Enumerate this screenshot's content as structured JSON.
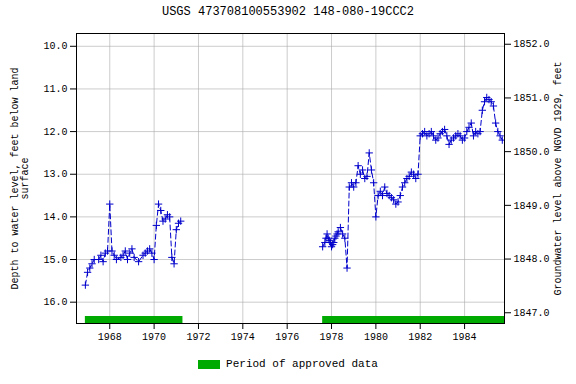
{
  "chart_data": {
    "type": "line",
    "title": "USGS 473708100553902 148-080-19CCC2",
    "ylabel": "Depth to water level, feet below land\nsurface",
    "y2label": "Groundwater level above NGVD 1929, feet",
    "x": [
      1966.9,
      1967.0,
      1967.1,
      1967.2,
      1967.3,
      1967.5,
      1967.6,
      1967.7,
      1967.8,
      1967.9,
      1968.0,
      1968.1,
      1968.2,
      1968.3,
      1968.5,
      1968.6,
      1968.7,
      1968.8,
      1968.9,
      1969.0,
      1969.1,
      1969.3,
      1969.5,
      1969.6,
      1969.7,
      1969.8,
      1969.9,
      1970.0,
      1970.1,
      1970.2,
      1970.3,
      1970.4,
      1970.5,
      1970.6,
      1970.7,
      1970.8,
      1970.9,
      1971.0,
      1971.1,
      1971.2,
      null,
      1977.6,
      1977.7,
      1977.75,
      1977.8,
      1977.85,
      1977.9,
      1977.95,
      1978.0,
      1978.05,
      1978.1,
      1978.15,
      1978.2,
      1978.25,
      1978.3,
      1978.4,
      1978.5,
      1978.6,
      1978.7,
      1978.8,
      1978.9,
      1979.0,
      1979.1,
      1979.2,
      1979.3,
      1979.4,
      1979.5,
      1979.6,
      1979.7,
      1979.8,
      1979.9,
      1980.0,
      1980.1,
      1980.2,
      1980.3,
      1980.4,
      1980.5,
      1980.6,
      1980.7,
      1980.8,
      1980.9,
      1981.0,
      1981.1,
      1981.2,
      1981.3,
      1981.4,
      1981.5,
      1981.6,
      1981.7,
      1981.8,
      1981.9,
      1982.0,
      1982.1,
      1982.2,
      1982.3,
      1982.4,
      1982.5,
      1982.6,
      1982.7,
      1982.8,
      1982.9,
      1983.0,
      1983.1,
      1983.2,
      1983.3,
      1983.4,
      1983.5,
      1983.6,
      1983.7,
      1983.8,
      1983.9,
      1984.0,
      1984.1,
      1984.2,
      1984.3,
      1984.4,
      1984.5,
      1984.6,
      1984.7,
      1984.8,
      1984.9,
      1985.0,
      1985.1,
      1985.2,
      1985.3,
      1985.4,
      1985.5,
      1985.6,
      1985.7
    ],
    "series": [
      {
        "color": "#0000cc",
        "marker": "plus",
        "line_style": "dashed",
        "values": [
          15.6,
          15.3,
          15.2,
          15.1,
          15.0,
          15.0,
          14.9,
          15.05,
          14.85,
          14.8,
          13.7,
          14.8,
          14.9,
          15.0,
          14.95,
          14.9,
          14.8,
          15.0,
          14.85,
          14.75,
          14.95,
          15.05,
          14.9,
          14.85,
          14.8,
          14.75,
          14.85,
          15.0,
          14.2,
          13.7,
          13.85,
          14.1,
          14.05,
          13.95,
          14.0,
          14.95,
          15.1,
          14.3,
          14.15,
          14.1,
          null,
          14.7,
          14.6,
          14.5,
          14.4,
          14.5,
          14.55,
          14.6,
          14.7,
          14.65,
          14.6,
          14.5,
          14.45,
          14.4,
          14.35,
          14.25,
          14.4,
          14.5,
          15.2,
          13.3,
          13.2,
          13.3,
          13.2,
          12.8,
          13.0,
          12.9,
          13.1,
          13.05,
          12.5,
          12.9,
          13.2,
          14.0,
          13.5,
          13.4,
          13.5,
          13.3,
          13.45,
          13.5,
          13.55,
          13.6,
          13.7,
          13.65,
          13.5,
          13.3,
          13.2,
          13.1,
          13.05,
          12.95,
          13.0,
          13.1,
          13.0,
          12.1,
          12.05,
          12.0,
          12.1,
          12.05,
          12.0,
          12.1,
          12.2,
          12.15,
          12.05,
          12.0,
          11.95,
          12.1,
          12.3,
          12.2,
          12.15,
          12.1,
          12.05,
          12.1,
          12.2,
          12.15,
          12.0,
          11.9,
          11.8,
          12.1,
          12.0,
          12.05,
          12.0,
          11.5,
          11.3,
          11.2,
          11.25,
          11.3,
          11.4,
          11.8,
          12.0,
          12.1,
          12.2
        ]
      }
    ],
    "spans": [
      {
        "name": "Period of approved data",
        "color": "#00aa00",
        "values": [
          [
            1966.9,
            1971.3
          ],
          [
            1977.6,
            1985.8
          ]
        ]
      }
    ],
    "xlim": [
      1966.5,
      1985.8
    ],
    "xticks": [
      1968,
      1970,
      1972,
      1974,
      1976,
      1978,
      1980,
      1982,
      1984
    ],
    "ylim": [
      16.5,
      9.7
    ],
    "yticks": [
      {
        "value": 10.0,
        "label": "10.0"
      },
      {
        "value": 11.0,
        "label": "11.0"
      },
      {
        "value": 12.0,
        "label": "12.0"
      },
      {
        "value": 13.0,
        "label": "13.0"
      },
      {
        "value": 14.0,
        "label": "14.0"
      },
      {
        "value": 15.0,
        "label": "15.0"
      },
      {
        "value": 16.0,
        "label": "16.0"
      }
    ],
    "y2lim": [
      1846.8,
      1852.2
    ],
    "y2ticks": [
      {
        "value": 1847.0,
        "label": "1847.0"
      },
      {
        "value": 1848.0,
        "label": "1848.0"
      },
      {
        "value": 1849.0,
        "label": "1849.0"
      },
      {
        "value": 1850.0,
        "label": "1850.0"
      },
      {
        "value": 1851.0,
        "label": "1851.0"
      },
      {
        "value": 1852.0,
        "label": "1852.0"
      }
    ],
    "grid": true,
    "legend": "bottom"
  }
}
